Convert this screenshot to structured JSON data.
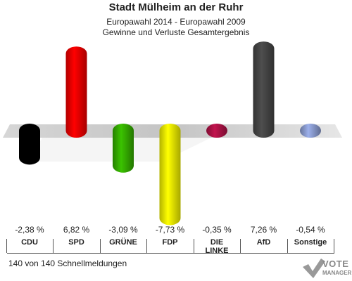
{
  "header": {
    "title": "Stadt Mülheim an der Ruhr",
    "subtitle1": "Europawahl 2014 - Europawahl 2009",
    "subtitle2": "Gewinne und Verluste Gesamtergebnis"
  },
  "footer": {
    "text": "140 von 140 Schnellmeldungen"
  },
  "logo": {
    "line1": "VOTE",
    "line2": "MANAGER"
  },
  "chart_data": {
    "type": "bar",
    "categories": [
      "CDU",
      "SPD",
      "GRÜNE",
      "FDP",
      "DIE LINKE",
      "AfD",
      "Sonstige"
    ],
    "category_lines": [
      [
        "CDU"
      ],
      [
        "SPD"
      ],
      [
        "GRÜNE"
      ],
      [
        "FDP"
      ],
      [
        "DIE",
        "LINKE"
      ],
      [
        "AfD"
      ],
      [
        "Sonstige"
      ]
    ],
    "values": [
      -2.38,
      6.82,
      -3.09,
      -7.73,
      -0.35,
      7.26,
      -0.54
    ],
    "value_labels": [
      "-2,38 %",
      "6,82 %",
      "-3,09 %",
      "-7,73 %",
      "-0,35 %",
      "7,26 %",
      "-0,54 %"
    ],
    "colors": [
      "#000000",
      "#ee0000",
      "#33aa00",
      "#eeee00",
      "#aa1144",
      "#444444",
      "#8899cc"
    ],
    "grid": false,
    "legend": "none"
  }
}
